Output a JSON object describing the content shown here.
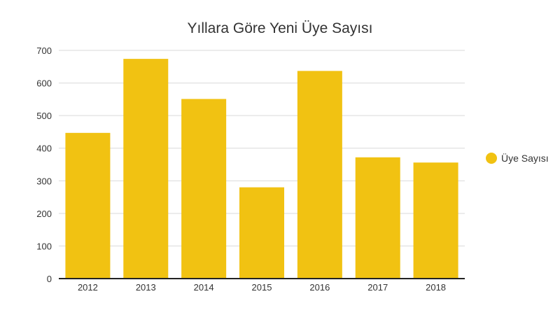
{
  "chart_data": {
    "type": "bar",
    "title": "Yıllara Göre Yeni Üye Sayısı",
    "xlabel": "",
    "ylabel": "",
    "categories": [
      "2012",
      "2013",
      "2014",
      "2015",
      "2016",
      "2017",
      "2018"
    ],
    "series": [
      {
        "name": "Üye Sayısı",
        "values": [
          447,
          674,
          551,
          280,
          637,
          372,
          356
        ],
        "color": "#f1c212"
      }
    ],
    "ylim": [
      0,
      700
    ],
    "yticks": [
      0,
      100,
      200,
      300,
      400,
      500,
      600,
      700
    ],
    "grid": true,
    "legend_position": "right"
  }
}
